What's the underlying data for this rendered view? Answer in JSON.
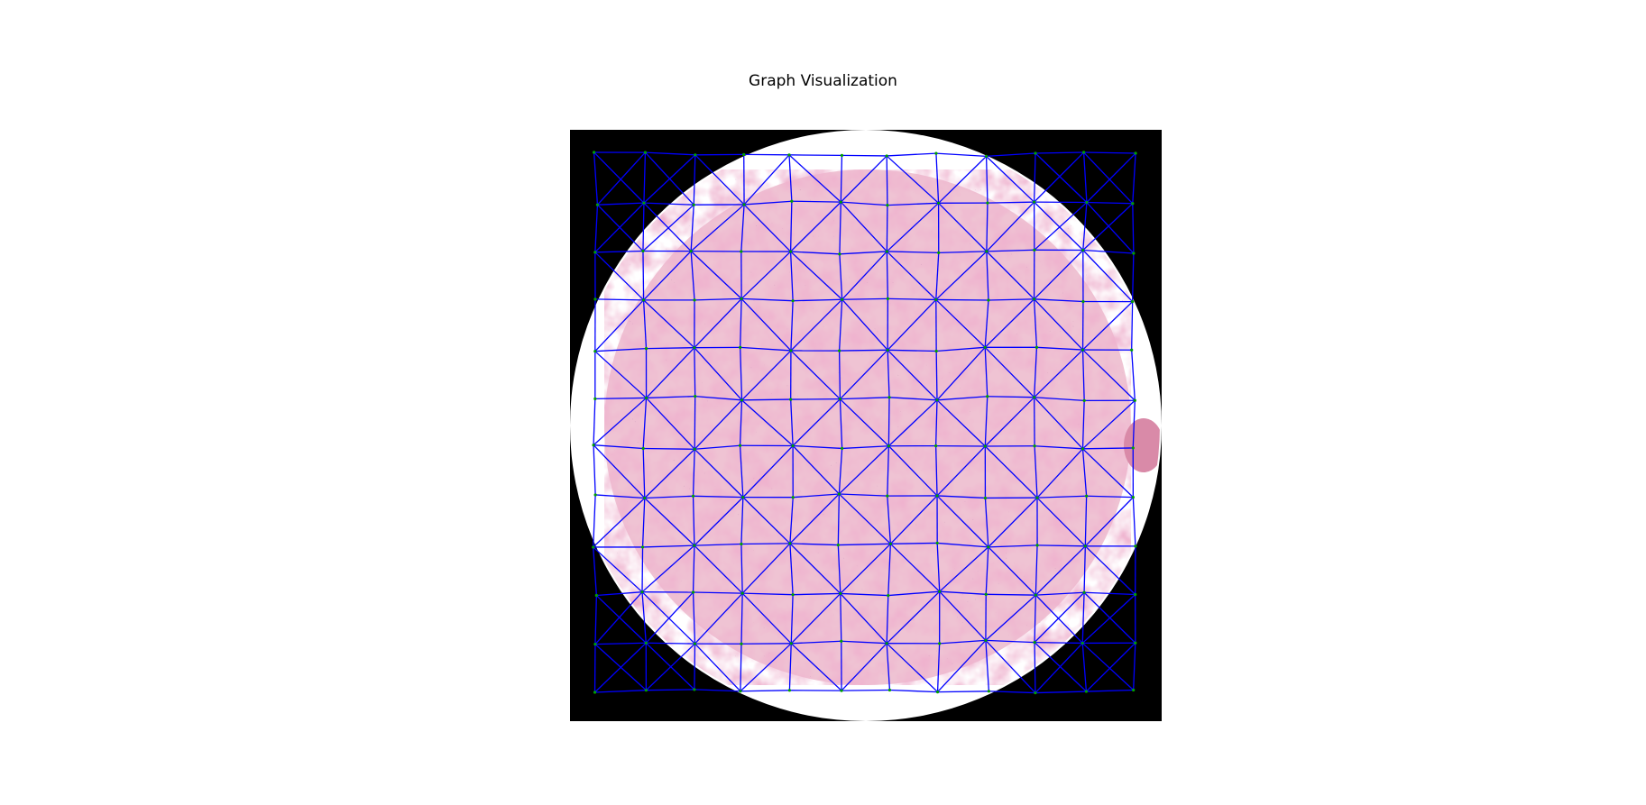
{
  "figure": {
    "title": "Graph Visualization"
  },
  "image": {
    "subject": "H&E stained tissue microarray core",
    "background_color": "#000000",
    "core_background_color": "#ffffff",
    "tissue_color": "#e6a0b8",
    "tissue_dark_color": "#c2587e",
    "nuclei_color": "#5a2a55"
  },
  "graph": {
    "edge_color": "#0000ff",
    "node_color": "#00a000",
    "grid_columns": 12,
    "grid_rows": 12,
    "diagonal_pattern": "alternating-triangulation"
  }
}
